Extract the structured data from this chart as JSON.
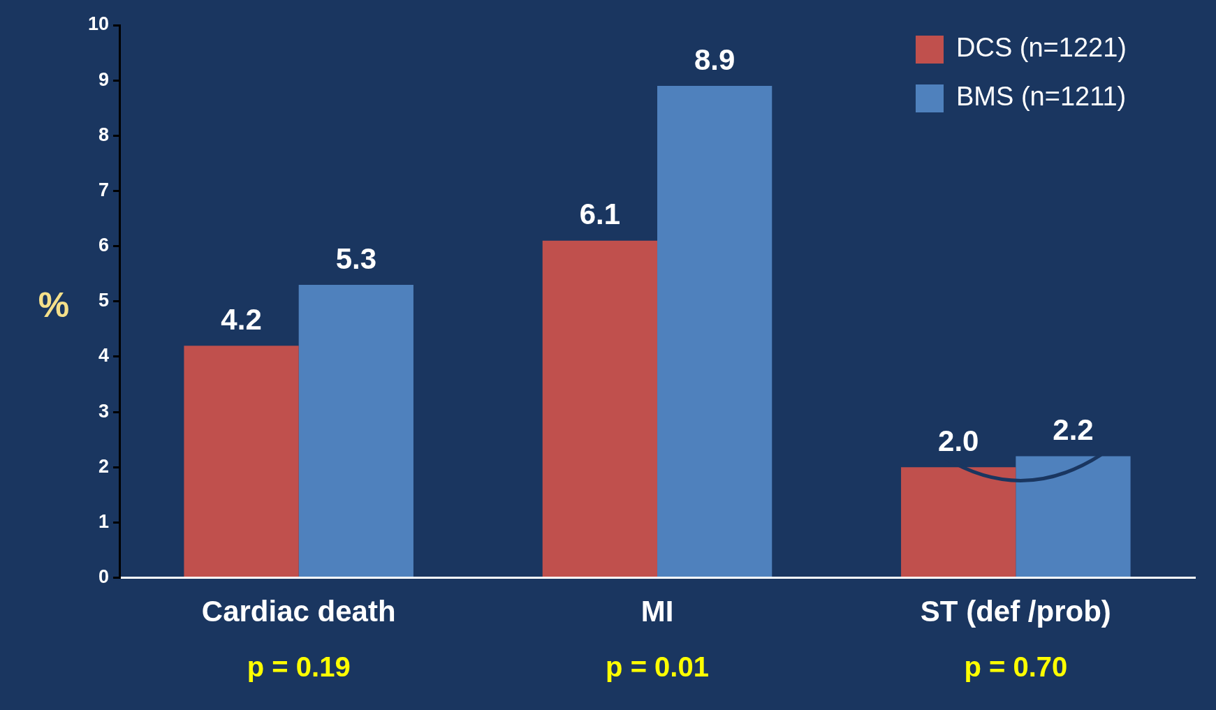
{
  "chart_data": {
    "type": "bar",
    "ylabel": "%",
    "categories": [
      "Cardiac death",
      "MI",
      "ST (def /prob)"
    ],
    "series": [
      {
        "name": "DCS (n=1221)",
        "color": "#c0504d",
        "values": [
          4.2,
          6.1,
          2.0
        ],
        "value_labels": [
          "4.2",
          "6.1",
          "2.0"
        ]
      },
      {
        "name": "BMS (n=1211)",
        "color": "#4f81bd",
        "values": [
          5.3,
          8.9,
          2.2
        ],
        "value_labels": [
          "5.3",
          "8.9",
          "2.2"
        ]
      }
    ],
    "ylim": [
      0,
      10
    ],
    "yticks": [
      0,
      1,
      2,
      3,
      4,
      5,
      6,
      7,
      8,
      9,
      10
    ],
    "grid": false,
    "legend": "top right",
    "annotations": [
      "p = 0.19",
      "p = 0.01",
      "p = 0.70"
    ]
  }
}
